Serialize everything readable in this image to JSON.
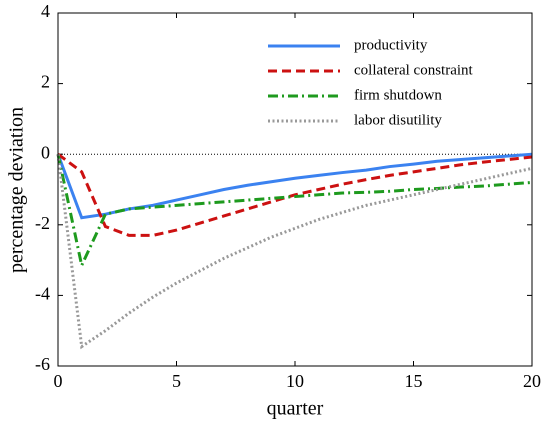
{
  "chart_data": {
    "type": "line",
    "x_label": "quarter",
    "y_label": "percentage deviation",
    "x": [
      0,
      1,
      2,
      3,
      4,
      5,
      6,
      7,
      8,
      9,
      10,
      11,
      12,
      13,
      14,
      15,
      16,
      17,
      18,
      19,
      20
    ],
    "series": [
      {
        "name": "productivity",
        "color": "#3b82f0",
        "style": "solid",
        "values": [
          0,
          -1.8,
          -1.7,
          -1.55,
          -1.45,
          -1.3,
          -1.15,
          -1.0,
          -0.88,
          -0.78,
          -0.68,
          -0.6,
          -0.52,
          -0.45,
          -0.35,
          -0.28,
          -0.2,
          -0.15,
          -0.1,
          -0.05,
          0
        ]
      },
      {
        "name": "collateral constraint",
        "color": "#cc1111",
        "style": "dashed",
        "values": [
          0,
          -0.5,
          -2.05,
          -2.3,
          -2.3,
          -2.15,
          -1.95,
          -1.75,
          -1.55,
          -1.35,
          -1.15,
          -1.0,
          -0.85,
          -0.72,
          -0.6,
          -0.5,
          -0.4,
          -0.3,
          -0.22,
          -0.15,
          -0.08
        ]
      },
      {
        "name": "firm shutdown",
        "color": "#1e9a1e",
        "style": "dashdot",
        "values": [
          0,
          -3.15,
          -1.7,
          -1.55,
          -1.5,
          -1.45,
          -1.4,
          -1.35,
          -1.3,
          -1.25,
          -1.2,
          -1.15,
          -1.1,
          -1.08,
          -1.05,
          -1.0,
          -0.97,
          -0.93,
          -0.9,
          -0.85,
          -0.8
        ]
      },
      {
        "name": "labor disutility",
        "color": "#999999",
        "style": "dotted",
        "values": [
          0,
          -5.45,
          -5.0,
          -4.5,
          -4.05,
          -3.65,
          -3.3,
          -2.95,
          -2.65,
          -2.35,
          -2.1,
          -1.85,
          -1.65,
          -1.45,
          -1.3,
          -1.15,
          -1.0,
          -0.85,
          -0.7,
          -0.55,
          -0.4
        ]
      }
    ],
    "xlim": [
      0,
      20
    ],
    "xticks": [
      0,
      5,
      10,
      15,
      20
    ],
    "ylim": [
      -6,
      4
    ],
    "yticks": [
      -6,
      -4,
      -2,
      0,
      2,
      4
    ],
    "reference_line": 0,
    "legend": "top-right"
  }
}
